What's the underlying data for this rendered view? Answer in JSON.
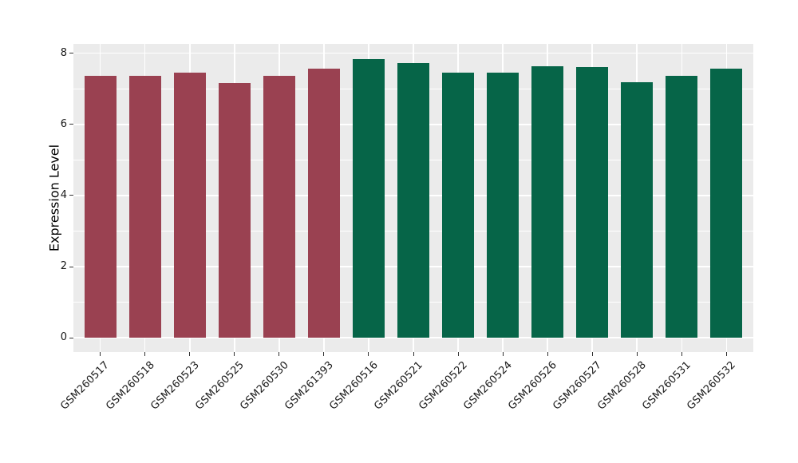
{
  "figure": {
    "background_color": "#FFFFFF",
    "panel_background_color": "#EBEBEB",
    "gridline_color": "#FFFFFF",
    "tick_color": "#333333",
    "tick_label_color": "#1a1a1a"
  },
  "chart_data": {
    "type": "bar",
    "title": "",
    "xlabel": "",
    "ylabel": "Expression Level",
    "categories": [
      "GSM260517",
      "GSM260518",
      "GSM260523",
      "GSM260525",
      "GSM260530",
      "GSM261393",
      "GSM260516",
      "GSM260521",
      "GSM260522",
      "GSM260524",
      "GSM260526",
      "GSM260527",
      "GSM260528",
      "GSM260531",
      "GSM260532"
    ],
    "values": [
      7.37,
      7.37,
      7.45,
      7.16,
      7.37,
      7.57,
      7.84,
      7.72,
      7.46,
      7.46,
      7.64,
      7.6,
      7.19,
      7.36,
      7.57
    ],
    "bar_colors": [
      "#9A4151",
      "#9A4151",
      "#9A4151",
      "#9A4151",
      "#9A4151",
      "#9A4151",
      "#066548",
      "#066548",
      "#066548",
      "#066548",
      "#066548",
      "#066548",
      "#066548",
      "#066548",
      "#066548"
    ],
    "groups": [
      {
        "name": "group-red",
        "color": "#9A4151",
        "samples": [
          "GSM260517",
          "GSM260518",
          "GSM260523",
          "GSM260525",
          "GSM260530",
          "GSM261393"
        ]
      },
      {
        "name": "group-green",
        "color": "#066548",
        "samples": [
          "GSM260516",
          "GSM260521",
          "GSM260522",
          "GSM260524",
          "GSM260526",
          "GSM260527",
          "GSM260528",
          "GSM260531",
          "GSM260532"
        ]
      }
    ],
    "ylim": [
      -0.4,
      8.26
    ],
    "yticks": [
      0,
      2,
      4,
      6,
      8
    ],
    "ytick_labels": [
      "0",
      "2",
      "4",
      "6",
      "8"
    ],
    "yticks_minor": [
      1,
      3,
      5,
      7
    ],
    "x_tick_rotation_deg": 45,
    "grid": "white major + minor horizontal, white vertical at each category, on gray panel",
    "legend": "none"
  }
}
